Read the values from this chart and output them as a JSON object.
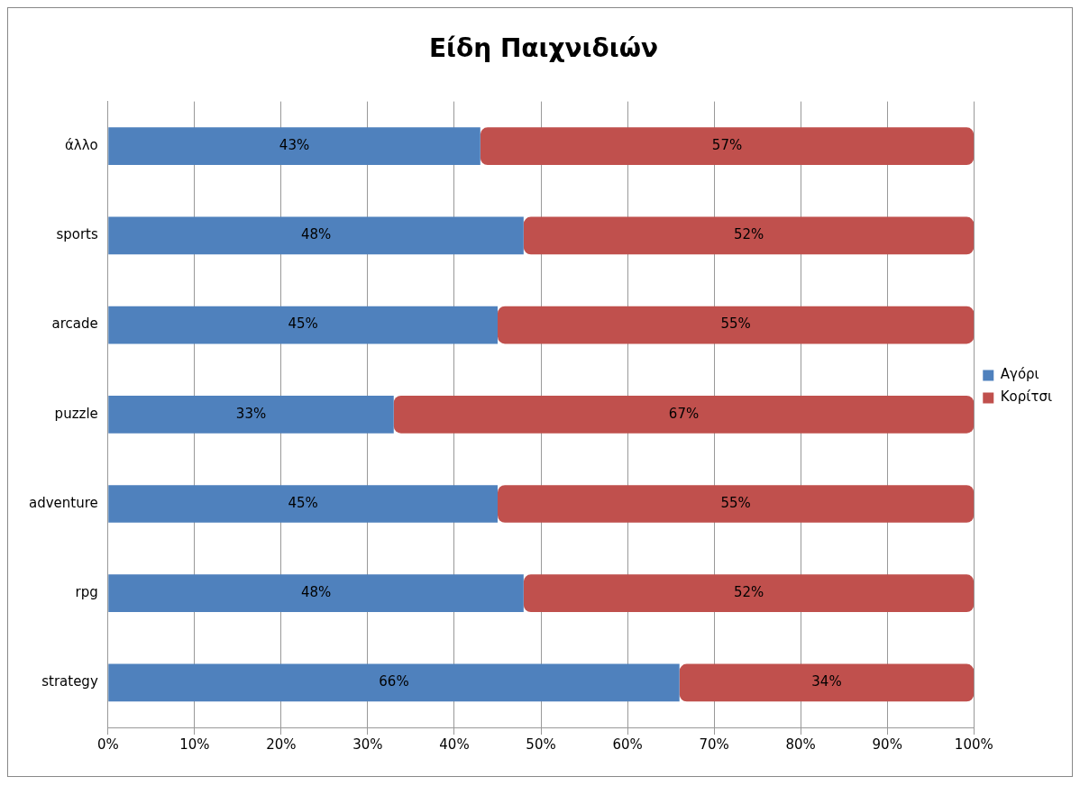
{
  "chart_data": {
    "type": "bar",
    "orientation": "horizontal",
    "stacked": true,
    "title": "Είδη Παιχνιδιών",
    "categories": [
      "άλλο",
      "sports",
      "arcade",
      "puzzle",
      "adventure",
      "rpg",
      "strategy"
    ],
    "series": [
      {
        "name": "Αγόρι",
        "color": "#4f81bd",
        "values": [
          43,
          48,
          45,
          33,
          45,
          48,
          66
        ],
        "value_labels": [
          "43%",
          "48%",
          "45%",
          "33%",
          "45%",
          "48%",
          "66%"
        ]
      },
      {
        "name": "Κορίτσι",
        "color": "#c0504d",
        "values": [
          57,
          52,
          55,
          67,
          55,
          52,
          34
        ],
        "value_labels": [
          "57%",
          "52%",
          "55%",
          "67%",
          "55%",
          "52%",
          "34%"
        ]
      }
    ],
    "xlim": [
      0,
      100
    ],
    "xticks": [
      {
        "value": 0,
        "label": "0%"
      },
      {
        "value": 10,
        "label": "10%"
      },
      {
        "value": 20,
        "label": "20%"
      },
      {
        "value": 30,
        "label": "30%"
      },
      {
        "value": 40,
        "label": "40%"
      },
      {
        "value": 50,
        "label": "50%"
      },
      {
        "value": 60,
        "label": "60%"
      },
      {
        "value": 70,
        "label": "70%"
      },
      {
        "value": 80,
        "label": "80%"
      },
      {
        "value": 90,
        "label": "90%"
      },
      {
        "value": 100,
        "label": "100%"
      }
    ],
    "grid": "x",
    "legend": "right"
  }
}
